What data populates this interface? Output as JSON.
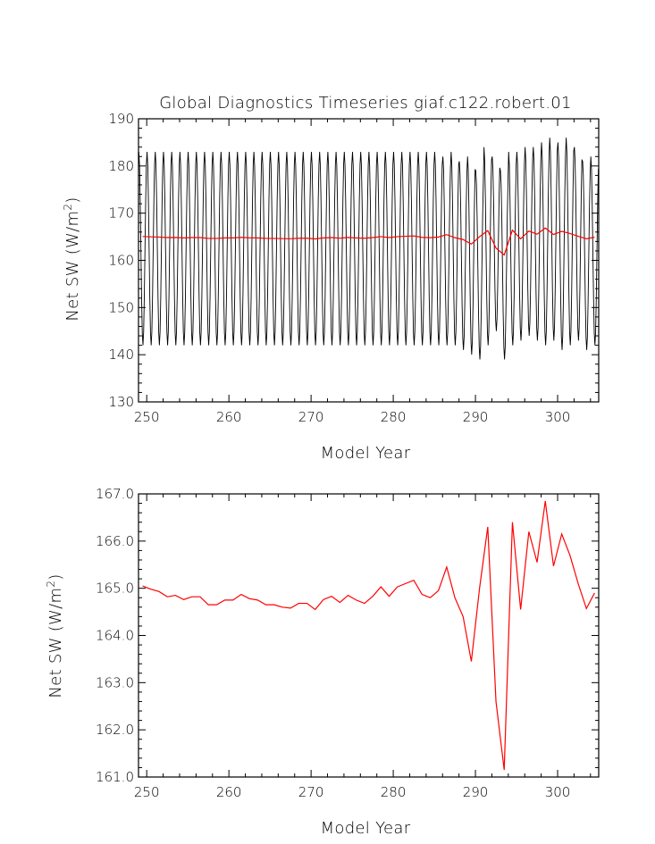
{
  "chart_data": [
    {
      "type": "line",
      "title": "Global Diagnostics Timeseries giaf.c122.robert.01",
      "xlabel": "Model Year",
      "ylabel_main": "Net SW (W/m",
      "ylabel_sup": "2",
      "ylabel_close": ")",
      "xlim": [
        249,
        305
      ],
      "ylim": [
        130,
        190
      ],
      "xticks": [
        250,
        260,
        270,
        280,
        290,
        300
      ],
      "xtick_labels": [
        "250",
        "260",
        "270",
        "280",
        "290",
        "300"
      ],
      "yticks": [
        130,
        140,
        150,
        160,
        170,
        180,
        190
      ],
      "ytick_labels": [
        "130",
        "140",
        "150",
        "160",
        "170",
        "180",
        "190"
      ],
      "series": [
        {
          "kind": "monthly",
          "color": "#000000",
          "years": [
            249,
            250,
            251,
            252,
            253,
            254,
            255,
            256,
            257,
            258,
            259,
            260,
            261,
            262,
            263,
            264,
            265,
            266,
            267,
            268,
            269,
            270,
            271,
            272,
            273,
            274,
            275,
            276,
            277,
            278,
            279,
            280,
            281,
            282,
            283,
            284,
            285,
            286,
            287,
            288,
            289,
            290,
            291,
            292,
            293,
            294,
            295,
            296,
            297,
            298,
            299,
            300,
            301,
            302,
            303,
            304
          ],
          "annual_max": [
            183,
            183,
            183,
            183,
            183,
            183,
            183,
            183,
            183,
            183,
            183,
            183,
            183,
            183,
            183,
            183,
            183,
            183,
            183,
            183,
            183,
            183,
            183,
            183,
            183,
            183,
            183,
            183,
            183,
            183,
            183,
            183,
            183,
            183,
            183,
            183,
            183,
            182,
            183,
            181,
            182,
            179,
            184,
            182,
            179,
            183,
            183,
            184,
            184,
            185,
            186,
            185,
            186,
            184,
            181,
            182
          ],
          "annual_min": [
            142,
            142,
            142,
            142,
            142,
            142,
            142,
            142,
            142,
            142,
            142,
            142,
            142,
            142,
            142,
            142,
            142,
            142,
            142,
            142,
            142,
            142,
            142,
            142,
            142,
            142,
            142,
            142,
            142,
            142,
            142,
            142,
            142,
            142,
            142,
            142,
            142,
            142,
            142,
            141,
            140,
            139,
            142,
            145,
            139,
            142,
            143,
            144,
            143,
            142,
            143,
            141,
            142,
            143,
            141,
            142
          ]
        },
        {
          "kind": "annual_mean",
          "color": "#ff0000",
          "x": [
            249.5,
            250.5,
            251.5,
            252.5,
            253.5,
            254.5,
            255.5,
            256.5,
            257.5,
            258.5,
            259.5,
            260.5,
            261.5,
            262.5,
            263.5,
            264.5,
            265.5,
            266.5,
            267.5,
            268.5,
            269.5,
            270.5,
            271.5,
            272.5,
            273.5,
            274.5,
            275.5,
            276.5,
            277.5,
            278.5,
            279.5,
            280.5,
            281.5,
            282.5,
            283.5,
            284.5,
            285.5,
            286.5,
            287.5,
            288.5,
            289.5,
            290.5,
            291.5,
            292.5,
            293.5,
            294.5,
            295.5,
            296.5,
            297.5,
            298.5,
            299.5,
            300.5,
            301.5,
            302.5,
            303.5,
            304.5
          ],
          "y": [
            165.05,
            164.98,
            164.93,
            164.82,
            164.85,
            164.76,
            164.82,
            164.82,
            164.65,
            164.65,
            164.75,
            164.75,
            164.87,
            164.78,
            164.75,
            164.65,
            164.65,
            164.6,
            164.58,
            164.68,
            164.68,
            164.55,
            164.76,
            164.83,
            164.7,
            164.85,
            164.75,
            164.68,
            164.83,
            165.03,
            164.83,
            165.03,
            165.1,
            165.17,
            164.87,
            164.8,
            164.95,
            165.45,
            164.8,
            164.4,
            163.45,
            165.0,
            166.3,
            162.6,
            161.15,
            166.4,
            164.55,
            166.2,
            165.55,
            166.85,
            165.47,
            166.15,
            165.7,
            165.1,
            164.57,
            164.9
          ]
        }
      ]
    },
    {
      "type": "line",
      "title": "",
      "xlabel": "Model Year",
      "ylabel_main": "Net SW (W/m",
      "ylabel_sup": "2",
      "ylabel_close": ")",
      "xlim": [
        249,
        305
      ],
      "ylim": [
        161.0,
        167.0
      ],
      "xticks": [
        250,
        260,
        270,
        280,
        290,
        300
      ],
      "xtick_labels": [
        "250",
        "260",
        "270",
        "280",
        "290",
        "300"
      ],
      "yticks": [
        161,
        162,
        163,
        164,
        165,
        166,
        167
      ],
      "ytick_labels": [
        "161.0",
        "162.0",
        "163.0",
        "164.0",
        "165.0",
        "166.0",
        "167.0"
      ],
      "series": [
        {
          "kind": "annual_mean",
          "color": "#ff0000",
          "x": [
            249.5,
            250.5,
            251.5,
            252.5,
            253.5,
            254.5,
            255.5,
            256.5,
            257.5,
            258.5,
            259.5,
            260.5,
            261.5,
            262.5,
            263.5,
            264.5,
            265.5,
            266.5,
            267.5,
            268.5,
            269.5,
            270.5,
            271.5,
            272.5,
            273.5,
            274.5,
            275.5,
            276.5,
            277.5,
            278.5,
            279.5,
            280.5,
            281.5,
            282.5,
            283.5,
            284.5,
            285.5,
            286.5,
            287.5,
            288.5,
            289.5,
            290.5,
            291.5,
            292.5,
            293.5,
            294.5,
            295.5,
            296.5,
            297.5,
            298.5,
            299.5,
            300.5,
            301.5,
            302.5,
            303.5,
            304.5
          ],
          "y": [
            165.05,
            164.98,
            164.93,
            164.82,
            164.85,
            164.76,
            164.82,
            164.82,
            164.65,
            164.65,
            164.75,
            164.75,
            164.87,
            164.78,
            164.75,
            164.65,
            164.65,
            164.6,
            164.58,
            164.68,
            164.68,
            164.55,
            164.76,
            164.83,
            164.7,
            164.85,
            164.75,
            164.68,
            164.83,
            165.03,
            164.83,
            165.03,
            165.1,
            165.17,
            164.87,
            164.8,
            164.95,
            165.45,
            164.8,
            164.4,
            163.45,
            165.0,
            166.3,
            162.6,
            161.15,
            166.4,
            164.55,
            166.2,
            165.55,
            166.85,
            165.47,
            166.15,
            165.7,
            165.1,
            164.57,
            164.9
          ]
        }
      ]
    }
  ]
}
